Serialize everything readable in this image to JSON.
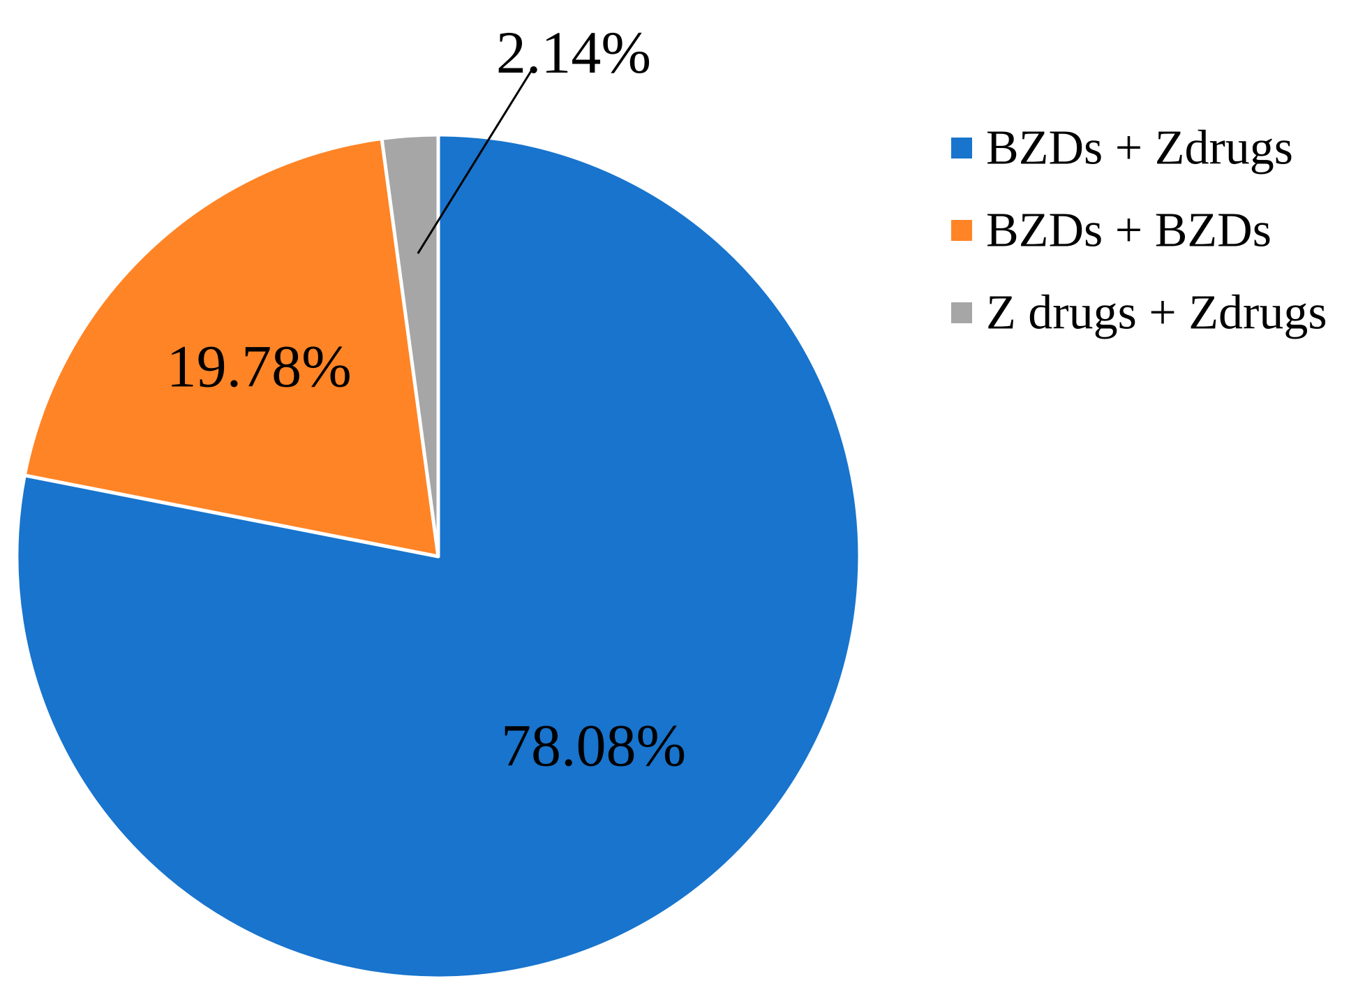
{
  "chart_data": {
    "type": "pie",
    "title": "",
    "start_angle_deg": 0,
    "direction": "clockwise",
    "legend_position": "right",
    "slices": [
      {
        "name": "BZDs + Zdrugs",
        "value": 78.08,
        "label": "78.08%",
        "color": "#1874CD"
      },
      {
        "name": "BZDs + BZDs",
        "value": 19.78,
        "label": "19.78%",
        "color": "#FF8426"
      },
      {
        "name": "Z drugs + Zdrugs",
        "value": 2.14,
        "label": "2.14%",
        "color": "#A6A6A6"
      }
    ]
  }
}
